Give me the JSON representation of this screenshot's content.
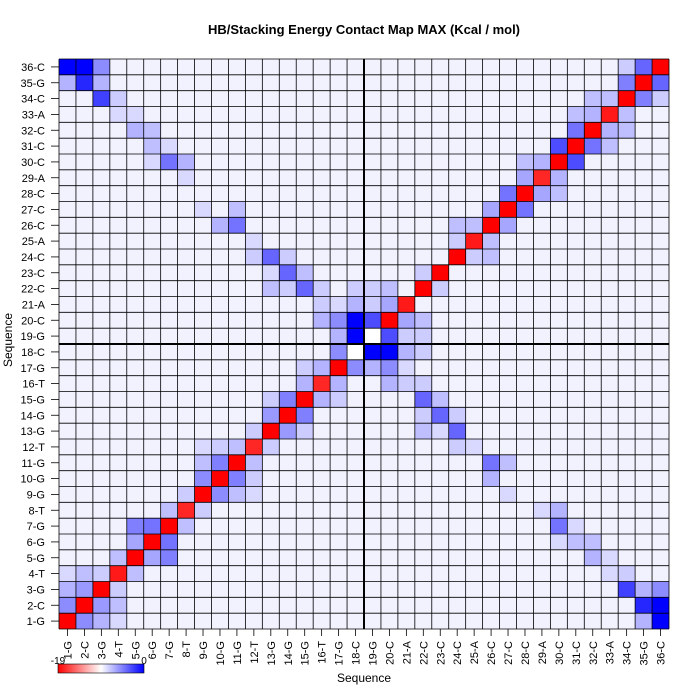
{
  "chart_data": {
    "type": "heatmap",
    "title": "HB/Stacking Energy Contact Map MAX (Kcal / mol)",
    "xlabel": "Sequence",
    "ylabel": "Sequence",
    "labels": [
      "1-G",
      "2-C",
      "3-G",
      "4-T",
      "5-G",
      "6-G",
      "7-G",
      "8-T",
      "9-G",
      "10-G",
      "11-G",
      "12-T",
      "13-G",
      "14-G",
      "15-G",
      "16-T",
      "17-G",
      "18-C",
      "19-G",
      "20-C",
      "21-A",
      "22-C",
      "23-C",
      "24-C",
      "25-A",
      "26-C",
      "27-C",
      "28-C",
      "29-A",
      "30-C",
      "31-C",
      "32-C",
      "33-A",
      "34-C",
      "35-G",
      "36-C"
    ],
    "colorbar": {
      "min_label": "-19",
      "max_label": "0"
    },
    "colors": {
      "strong": "#0000ff",
      "self": "#ff0000",
      "neutral": "#ffffff",
      "grid": "#000000"
    },
    "divider_after": 18,
    "background_value": 0.05,
    "diagonal_cells": [
      [
        1,
        1,
        0.0
      ],
      [
        2,
        2,
        0.0
      ],
      [
        3,
        3,
        0.0
      ],
      [
        4,
        4,
        0.1
      ],
      [
        5,
        5,
        0.0
      ],
      [
        6,
        6,
        0.0
      ],
      [
        7,
        7,
        0.0
      ],
      [
        8,
        8,
        0.15
      ],
      [
        9,
        9,
        0.0
      ],
      [
        10,
        10,
        0.0
      ],
      [
        11,
        11,
        0.0
      ],
      [
        12,
        12,
        0.15
      ],
      [
        13,
        13,
        0.0
      ],
      [
        14,
        14,
        0.0
      ],
      [
        15,
        15,
        0.0
      ],
      [
        16,
        16,
        0.15
      ],
      [
        17,
        17,
        0.0
      ],
      [
        18,
        18,
        "x"
      ],
      [
        19,
        19,
        "x"
      ],
      [
        20,
        20,
        0.0
      ],
      [
        21,
        21,
        0.1
      ],
      [
        22,
        22,
        0.0
      ],
      [
        23,
        23,
        0.0
      ],
      [
        24,
        24,
        0.0
      ],
      [
        25,
        25,
        0.1
      ],
      [
        26,
        26,
        0.0
      ],
      [
        27,
        27,
        0.0
      ],
      [
        28,
        28,
        0.0
      ],
      [
        29,
        29,
        0.15
      ],
      [
        30,
        30,
        0.0
      ],
      [
        31,
        31,
        0.0
      ],
      [
        32,
        32,
        0.0
      ],
      [
        33,
        33,
        0.1
      ],
      [
        34,
        34,
        0.0
      ],
      [
        35,
        35,
        0.0
      ],
      [
        36,
        36,
        0.0
      ]
    ],
    "cells": [
      [
        1,
        2,
        -0.45
      ],
      [
        2,
        1,
        -0.45
      ],
      [
        1,
        3,
        -0.3
      ],
      [
        3,
        1,
        -0.3
      ],
      [
        2,
        3,
        -0.4
      ],
      [
        3,
        2,
        -0.4
      ],
      [
        2,
        4,
        -0.25
      ],
      [
        4,
        2,
        -0.25
      ],
      [
        2,
        35,
        -0.85
      ],
      [
        35,
        2,
        -0.85
      ],
      [
        2,
        36,
        -1.0
      ],
      [
        36,
        2,
        -1.0
      ],
      [
        1,
        36,
        -1.0
      ],
      [
        36,
        1,
        -1.0
      ],
      [
        1,
        35,
        -0.3
      ],
      [
        35,
        1,
        -0.3
      ],
      [
        3,
        34,
        -0.75
      ],
      [
        34,
        3,
        -0.75
      ],
      [
        3,
        35,
        -0.3
      ],
      [
        35,
        3,
        -0.3
      ],
      [
        3,
        36,
        -0.45
      ],
      [
        36,
        3,
        -0.45
      ],
      [
        4,
        34,
        -0.2
      ],
      [
        34,
        4,
        -0.2
      ],
      [
        4,
        5,
        -0.25
      ],
      [
        5,
        4,
        -0.25
      ],
      [
        5,
        6,
        -0.35
      ],
      [
        6,
        5,
        -0.35
      ],
      [
        5,
        7,
        -0.5
      ],
      [
        7,
        5,
        -0.5
      ],
      [
        5,
        32,
        -0.3
      ],
      [
        32,
        5,
        -0.3
      ],
      [
        6,
        7,
        -0.55
      ],
      [
        7,
        6,
        -0.55
      ],
      [
        6,
        31,
        -0.25
      ],
      [
        31,
        6,
        -0.25
      ],
      [
        6,
        32,
        -0.25
      ],
      [
        32,
        6,
        -0.25
      ],
      [
        7,
        8,
        -0.25
      ],
      [
        8,
        7,
        -0.25
      ],
      [
        7,
        30,
        -0.55
      ],
      [
        30,
        7,
        -0.55
      ],
      [
        8,
        9,
        -0.2
      ],
      [
        9,
        8,
        -0.2
      ],
      [
        8,
        30,
        -0.3
      ],
      [
        30,
        8,
        -0.3
      ],
      [
        9,
        10,
        -0.45
      ],
      [
        10,
        9,
        -0.45
      ],
      [
        9,
        11,
        -0.25
      ],
      [
        11,
        9,
        -0.25
      ],
      [
        10,
        11,
        -0.5
      ],
      [
        11,
        10,
        -0.5
      ],
      [
        10,
        26,
        -0.3
      ],
      [
        26,
        10,
        -0.3
      ],
      [
        11,
        26,
        -0.55
      ],
      [
        26,
        11,
        -0.55
      ],
      [
        11,
        27,
        -0.25
      ],
      [
        27,
        11,
        -0.25
      ],
      [
        12,
        13,
        -0.2
      ],
      [
        13,
        12,
        -0.2
      ],
      [
        13,
        14,
        -0.4
      ],
      [
        14,
        13,
        -0.4
      ],
      [
        13,
        15,
        -0.2
      ],
      [
        15,
        13,
        -0.2
      ],
      [
        13,
        22,
        -0.25
      ],
      [
        22,
        13,
        -0.25
      ],
      [
        13,
        24,
        -0.6
      ],
      [
        24,
        13,
        -0.6
      ],
      [
        14,
        15,
        -0.5
      ],
      [
        15,
        14,
        -0.5
      ],
      [
        14,
        23,
        -0.6
      ],
      [
        23,
        14,
        -0.6
      ],
      [
        14,
        22,
        -0.2
      ],
      [
        22,
        14,
        -0.2
      ],
      [
        15,
        16,
        -0.3
      ],
      [
        16,
        15,
        -0.3
      ],
      [
        15,
        17,
        -0.2
      ],
      [
        17,
        15,
        -0.2
      ],
      [
        15,
        22,
        -0.6
      ],
      [
        22,
        15,
        -0.6
      ],
      [
        16,
        17,
        -0.3
      ],
      [
        17,
        16,
        -0.3
      ],
      [
        16,
        20,
        -0.3
      ],
      [
        20,
        16,
        -0.3
      ],
      [
        17,
        18,
        -0.45
      ],
      [
        18,
        17,
        -0.45
      ],
      [
        17,
        19,
        -0.3
      ],
      [
        19,
        17,
        -0.3
      ],
      [
        17,
        20,
        -0.45
      ],
      [
        20,
        17,
        -0.45
      ],
      [
        18,
        19,
        -1.0
      ],
      [
        19,
        18,
        -1.0
      ],
      [
        18,
        20,
        -1.0
      ],
      [
        20,
        18,
        -1.0
      ],
      [
        18,
        21,
        -0.3
      ],
      [
        21,
        18,
        -0.3
      ],
      [
        19,
        20,
        -0.7
      ],
      [
        20,
        19,
        -0.7
      ],
      [
        19,
        21,
        -0.2
      ],
      [
        21,
        19,
        -0.2
      ],
      [
        20,
        21,
        -0.35
      ],
      [
        21,
        20,
        -0.35
      ],
      [
        22,
        23,
        -0.2
      ],
      [
        23,
        22,
        -0.2
      ],
      [
        24,
        25,
        -0.2
      ],
      [
        25,
        24,
        -0.2
      ],
      [
        24,
        26,
        -0.25
      ],
      [
        26,
        24,
        -0.25
      ],
      [
        25,
        26,
        -0.25
      ],
      [
        26,
        25,
        -0.25
      ],
      [
        26,
        27,
        -0.35
      ],
      [
        27,
        26,
        -0.35
      ],
      [
        27,
        28,
        -0.55
      ],
      [
        28,
        27,
        -0.55
      ],
      [
        28,
        29,
        -0.35
      ],
      [
        29,
        28,
        -0.35
      ],
      [
        28,
        30,
        -0.25
      ],
      [
        30,
        28,
        -0.25
      ],
      [
        29,
        30,
        -0.3
      ],
      [
        30,
        29,
        -0.3
      ],
      [
        30,
        31,
        -0.7
      ],
      [
        31,
        30,
        -0.7
      ],
      [
        31,
        32,
        -0.55
      ],
      [
        32,
        31,
        -0.55
      ],
      [
        31,
        33,
        -0.25
      ],
      [
        33,
        31,
        -0.25
      ],
      [
        32,
        33,
        -0.3
      ],
      [
        33,
        32,
        -0.3
      ],
      [
        32,
        34,
        -0.25
      ],
      [
        34,
        32,
        -0.25
      ],
      [
        33,
        34,
        -0.25
      ],
      [
        34,
        33,
        -0.25
      ],
      [
        34,
        35,
        -0.5
      ],
      [
        35,
        34,
        -0.5
      ],
      [
        35,
        36,
        -0.6
      ],
      [
        36,
        35,
        -0.6
      ],
      [
        34,
        36,
        -0.2
      ],
      [
        36,
        34,
        -0.2
      ],
      [
        10,
        12,
        -0.2
      ],
      [
        12,
        10,
        -0.2
      ],
      [
        12,
        24,
        -0.2
      ],
      [
        24,
        12,
        -0.2
      ],
      [
        12,
        25,
        -0.15
      ],
      [
        25,
        12,
        -0.15
      ],
      [
        9,
        27,
        -0.15
      ],
      [
        27,
        9,
        -0.15
      ],
      [
        8,
        29,
        -0.15
      ],
      [
        29,
        8,
        -0.15
      ],
      [
        4,
        33,
        -0.15
      ],
      [
        33,
        4,
        -0.15
      ],
      [
        16,
        21,
        -0.2
      ],
      [
        21,
        16,
        -0.2
      ],
      [
        17,
        21,
        -0.15
      ],
      [
        21,
        17,
        -0.15
      ],
      [
        19,
        22,
        -0.2
      ],
      [
        22,
        19,
        -0.2
      ],
      [
        20,
        22,
        -0.25
      ],
      [
        22,
        20,
        -0.25
      ],
      [
        16,
        22,
        -0.2
      ],
      [
        22,
        16,
        -0.2
      ],
      [
        14,
        24,
        -0.2
      ],
      [
        24,
        14,
        -0.2
      ],
      [
        15,
        23,
        -0.25
      ],
      [
        23,
        15,
        -0.25
      ],
      [
        13,
        23,
        -0.15
      ],
      [
        23,
        13,
        -0.15
      ],
      [
        6,
        30,
        -0.15
      ],
      [
        30,
        6,
        -0.15
      ],
      [
        7,
        31,
        -0.15
      ],
      [
        31,
        7,
        -0.15
      ],
      [
        5,
        33,
        -0.15
      ],
      [
        33,
        5,
        -0.15
      ],
      [
        3,
        4,
        -0.2
      ],
      [
        4,
        3,
        -0.2
      ],
      [
        1,
        4,
        -0.15
      ],
      [
        4,
        1,
        -0.15
      ],
      [
        18,
        22,
        -0.2
      ],
      [
        22,
        18,
        -0.2
      ],
      [
        11,
        12,
        -0.25
      ],
      [
        12,
        11,
        -0.25
      ],
      [
        9,
        12,
        -0.15
      ],
      [
        12,
        9,
        -0.15
      ]
    ]
  }
}
